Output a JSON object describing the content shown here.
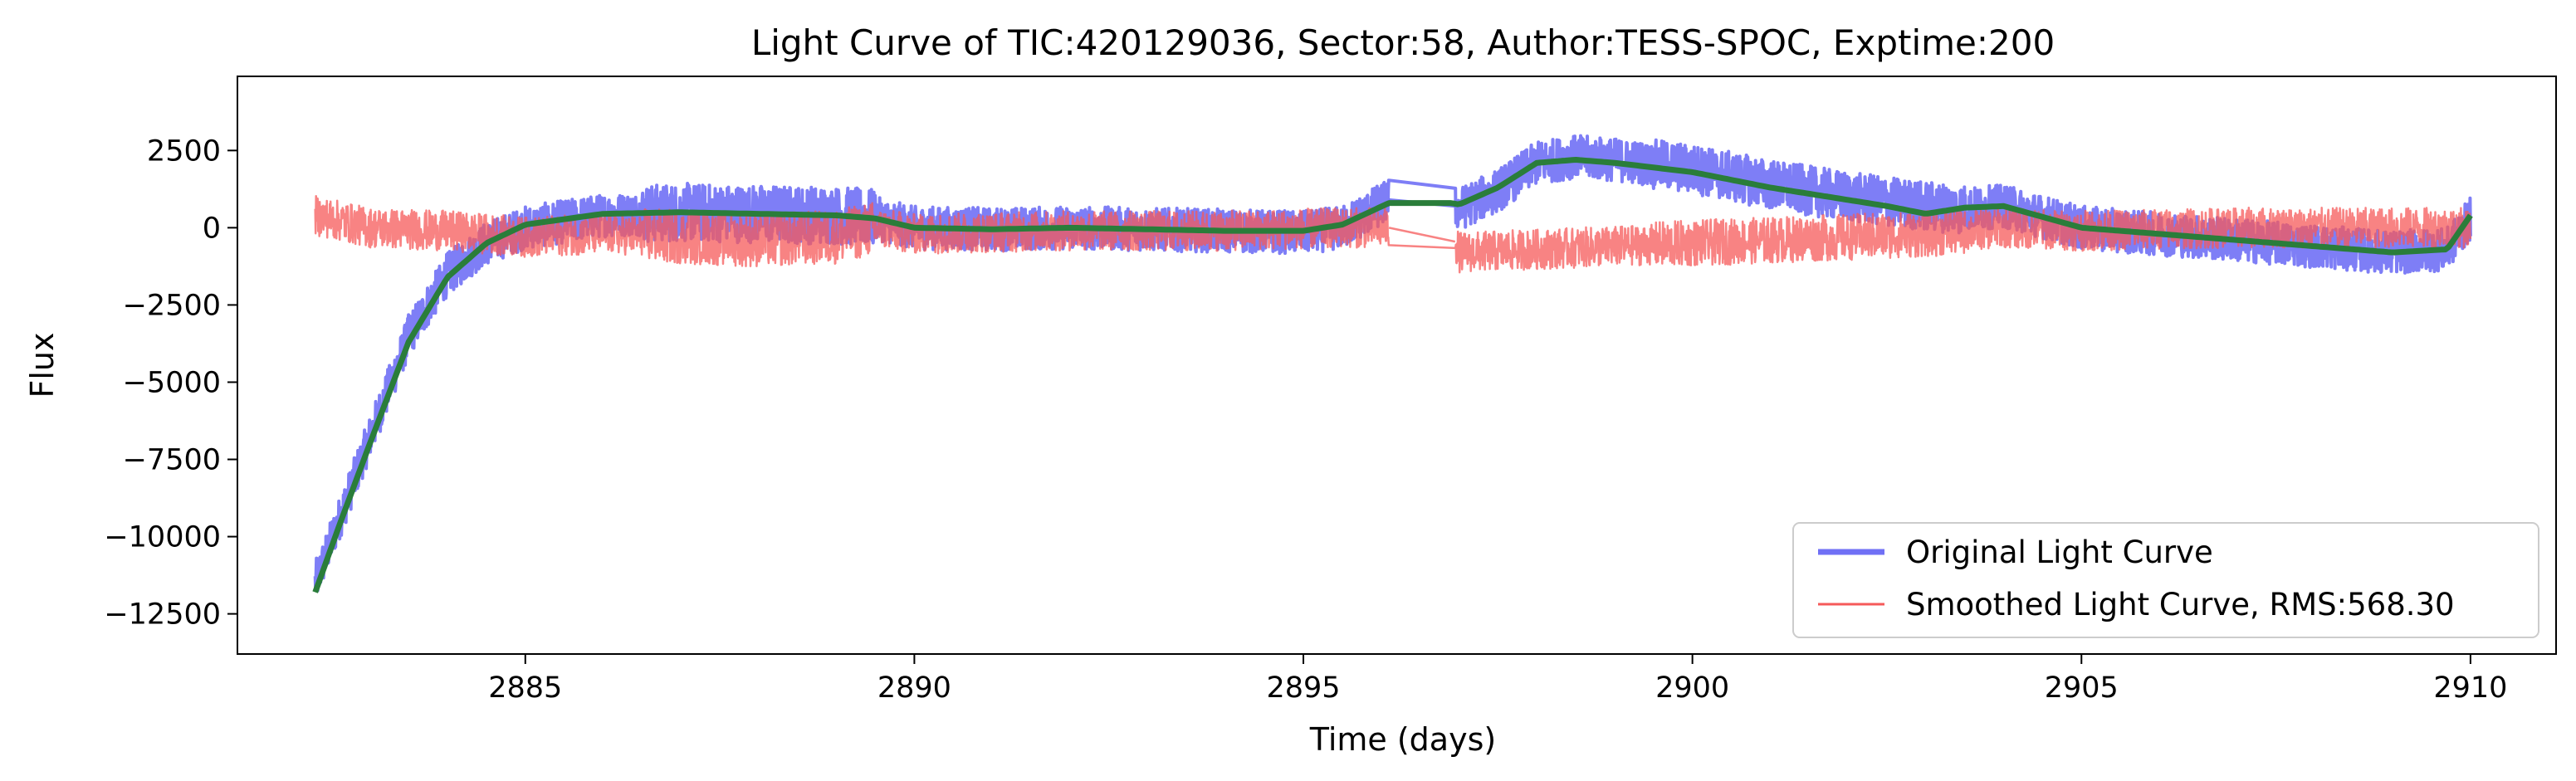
{
  "chart_data": {
    "type": "line",
    "title": "Light Curve of TIC:420129036, Sector:58, Author:TESS-SPOC, Exptime:200",
    "xlabel": "Time (days)",
    "ylabel": "Flux",
    "xlim": [
      2881.3,
      2911.1
    ],
    "ylim": [
      -13800,
      4900
    ],
    "x_ticks": [
      2885,
      2890,
      2895,
      2900,
      2905,
      2910
    ],
    "x_tick_labels": [
      "2885",
      "2890",
      "2895",
      "2900",
      "2905",
      "2910"
    ],
    "y_ticks": [
      2500,
      0,
      -2500,
      -5000,
      -7500,
      -10000,
      -12500
    ],
    "y_tick_labels": [
      "2500",
      "0",
      "−2500",
      "−5000",
      "−7500",
      "−10000",
      "−12500"
    ],
    "legend_position": "lower-right",
    "series": [
      {
        "name": "Original Light Curve",
        "color": "#7070f5",
        "noise_amplitude": 700,
        "x": [
          2882.3,
          2882.6,
          2883.0,
          2883.5,
          2884.0,
          2884.5,
          2885.0,
          2886.0,
          2887.0,
          2888.0,
          2889.0,
          2889.5,
          2890.0,
          2891.0,
          2892.0,
          2893.0,
          2894.0,
          2895.0,
          2895.5,
          2896.1,
          2896.9,
          2897.0,
          2897.5,
          2898.0,
          2898.5,
          2899.0,
          2900.0,
          2901.0,
          2902.0,
          2903.0,
          2903.5,
          2904.0,
          2905.0,
          2906.0,
          2907.0,
          2908.0,
          2909.0,
          2909.7,
          2910.0
        ],
        "y": [
          -11500,
          -9500,
          -6800,
          -3500,
          -1500,
          -500,
          0,
          400,
          500,
          450,
          400,
          300,
          0,
          -50,
          0,
          -50,
          -100,
          -150,
          0,
          900,
          800,
          600,
          1200,
          2100,
          2300,
          2200,
          1900,
          1400,
          1000,
          700,
          600,
          700,
          0,
          -200,
          -400,
          -600,
          -800,
          -700,
          300
        ]
      },
      {
        "name": "Smoothed Light Curve, RMS:568.30",
        "color": "#f55a5a",
        "noise_amplitude": 650,
        "x": [
          2882.3,
          2883.0,
          2884.0,
          2885.0,
          2886.0,
          2887.0,
          2888.0,
          2889.0,
          2889.5,
          2890.0,
          2892.0,
          2894.0,
          2895.5,
          2896.1,
          2896.9,
          2897.0,
          2898.0,
          2899.0,
          2900.0,
          2901.0,
          2902.0,
          2903.0,
          2903.5,
          2904.0,
          2905.0,
          2906.0,
          2907.0,
          2908.0,
          2909.0,
          2910.0
        ],
        "y": [
          400,
          0,
          -100,
          -300,
          -200,
          -300,
          -400,
          -300,
          0,
          -200,
          -100,
          -100,
          0,
          0,
          -100,
          -800,
          -700,
          -600,
          -500,
          -400,
          -300,
          -200,
          -100,
          0,
          -100,
          -50,
          0,
          0,
          0,
          0
        ]
      },
      {
        "name": "",
        "color": "#2a7d3a",
        "noise_amplitude": 0,
        "x": [
          2882.3,
          2882.6,
          2883.0,
          2883.5,
          2884.0,
          2884.5,
          2885.0,
          2886.0,
          2887.0,
          2888.0,
          2889.0,
          2889.5,
          2890.0,
          2891.0,
          2892.0,
          2893.0,
          2894.0,
          2895.0,
          2895.5,
          2896.1,
          2896.9,
          2897.0,
          2897.5,
          2898.0,
          2898.5,
          2899.0,
          2900.0,
          2901.0,
          2902.0,
          2902.5,
          2903.0,
          2903.5,
          2904.0,
          2905.0,
          2906.0,
          2907.0,
          2908.0,
          2909.0,
          2909.7,
          2910.0
        ],
        "y": [
          -11800,
          -9700,
          -7000,
          -3700,
          -1600,
          -500,
          100,
          450,
          500,
          450,
          400,
          300,
          0,
          -50,
          0,
          -50,
          -100,
          -100,
          100,
          800,
          800,
          750,
          1300,
          2100,
          2200,
          2100,
          1800,
          1300,
          900,
          700,
          450,
          650,
          700,
          0,
          -200,
          -400,
          -600,
          -800,
          -700,
          400
        ]
      }
    ]
  }
}
